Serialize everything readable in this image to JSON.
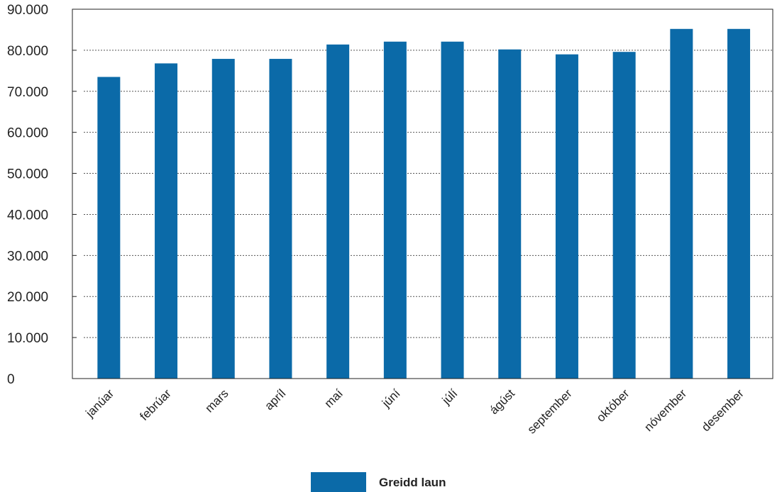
{
  "chart_data": {
    "type": "bar",
    "categories": [
      "janúar",
      "febrúar",
      "mars",
      "apríl",
      "maí",
      "júní",
      "júlí",
      "ágúst",
      "september",
      "október",
      "nóvember",
      "desember"
    ],
    "series": [
      {
        "name": "Greidd laun",
        "values": [
          73500,
          76800,
          77900,
          77900,
          81400,
          82100,
          82100,
          80200,
          79000,
          79600,
          85200,
          85200
        ],
        "color": "#0b6aa8"
      }
    ],
    "yticks": [
      "0",
      "10.000",
      "20.000",
      "30.000",
      "40.000",
      "50.000",
      "60.000",
      "70.000",
      "80.000",
      "90.000"
    ],
    "ylim": [
      0,
      90000
    ],
    "grid": true,
    "legend": "bottom-center"
  }
}
